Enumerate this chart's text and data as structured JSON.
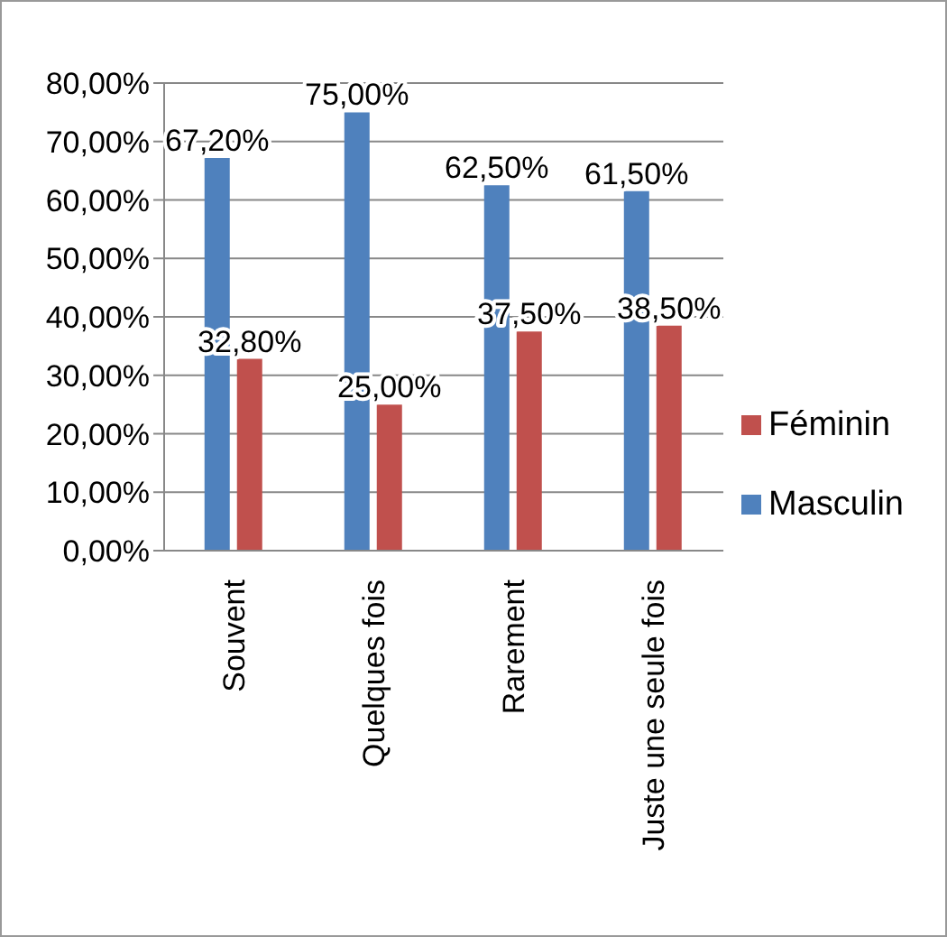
{
  "chart_data": {
    "type": "bar",
    "categories": [
      "Souvent",
      "Quelques fois",
      "Rarement",
      "Juste une seule fois"
    ],
    "series": [
      {
        "name": "Masculin",
        "color": "#4f81bd",
        "values": [
          67.2,
          75,
          62.5,
          61.5
        ],
        "value_labels": [
          "67,20%",
          "75,00%",
          "62,50%",
          "61,50%"
        ]
      },
      {
        "name": "Féminin",
        "color": "#c0504d",
        "values": [
          32.8,
          25,
          37.5,
          38.5
        ],
        "value_labels": [
          "32,80%",
          "25,00%",
          "37,50%",
          "38,50%"
        ]
      }
    ],
    "ylim": [
      0,
      80
    ],
    "yticks": [
      {
        "value": 0,
        "label": "0,00%"
      },
      {
        "value": 10,
        "label": "10,00%"
      },
      {
        "value": 20,
        "label": "20,00%"
      },
      {
        "value": 30,
        "label": "30,00%"
      },
      {
        "value": 40,
        "label": "40,00%"
      },
      {
        "value": 50,
        "label": "50,00%"
      },
      {
        "value": 60,
        "label": "60,00%"
      },
      {
        "value": 70,
        "label": "70,00%"
      },
      {
        "value": 80,
        "label": "80,00%"
      }
    ],
    "grid": "y",
    "legend": "right"
  }
}
